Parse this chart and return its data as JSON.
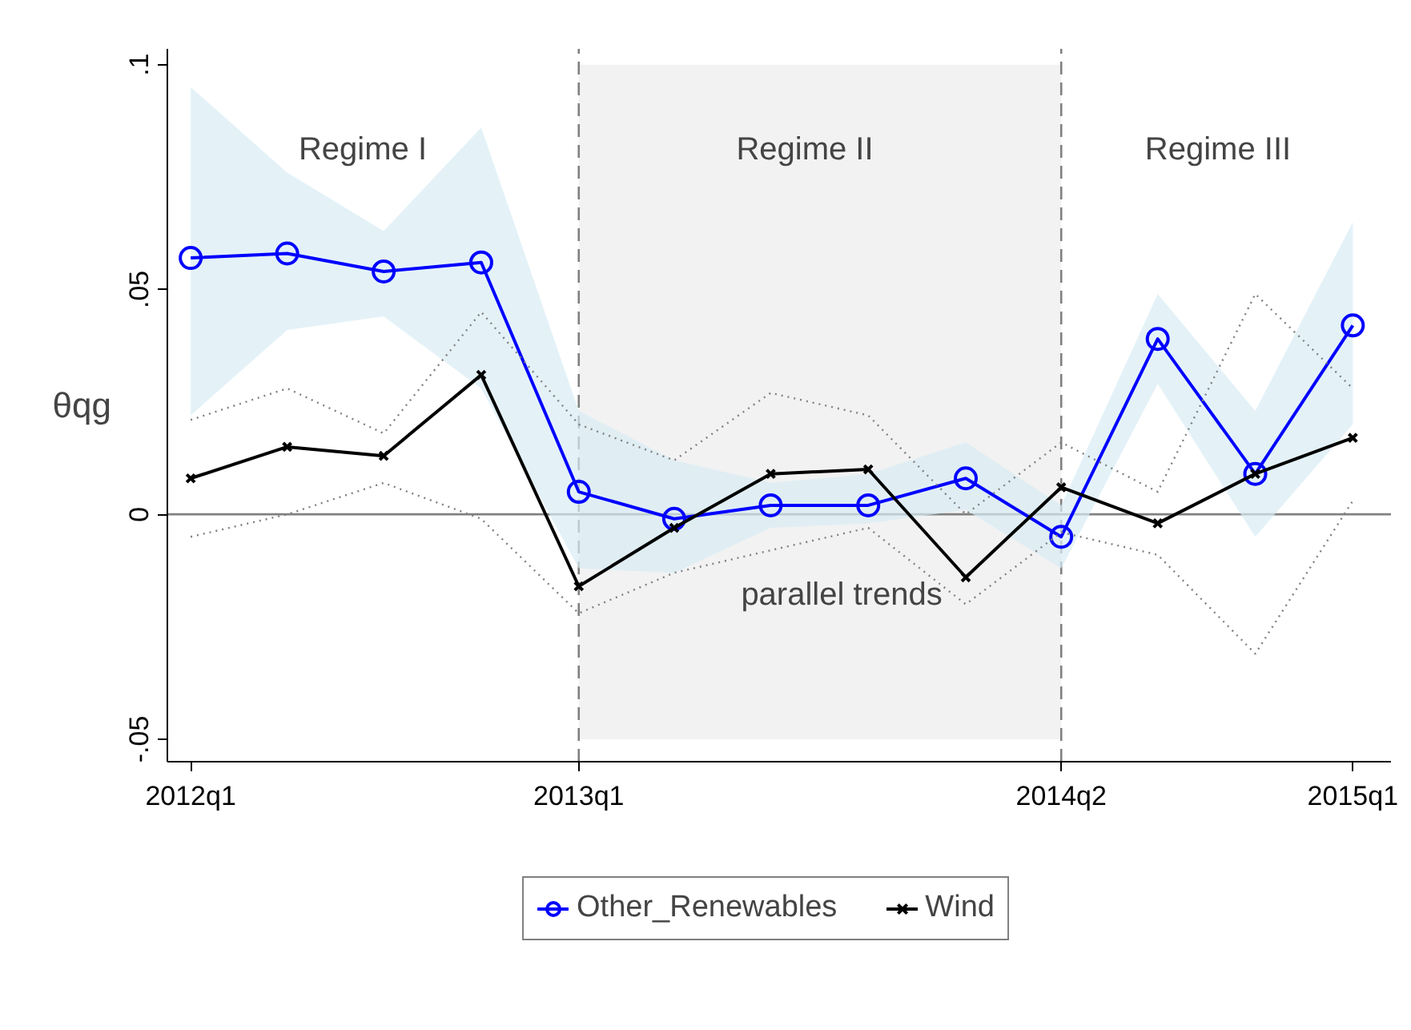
{
  "chart_data": {
    "type": "line",
    "ylabel": "θqg",
    "x": [
      "2012-01",
      "2012-04",
      "2012-07",
      "2012-10",
      "2013-01",
      "2013-04",
      "2013-07",
      "2013-10",
      "2014-01",
      "2014-04",
      "2014-07",
      "2014-10",
      "2015-01"
    ],
    "xlim": [
      "2011-12-10",
      "2015-02-06"
    ],
    "ylim": [
      -0.055,
      0.1035
    ],
    "xticks": [
      {
        "value": "2012-01",
        "label": "2012q1"
      },
      {
        "value": "2013-01",
        "label": "2013q1"
      },
      {
        "value": "2014-04",
        "label": "2014q2"
      },
      {
        "value": "2015-01",
        "label": "2015q1"
      }
    ],
    "yticks": [
      {
        "value": -0.05,
        "label": "-.05"
      },
      0,
      {
        "value": 0.05,
        "label": ".05"
      },
      {
        "value": 0.1,
        "label": ".1"
      }
    ],
    "series": [
      {
        "name": "Other_Renewables",
        "color": "#0000ff",
        "marker": "circle",
        "line_style": "solid",
        "values": [
          0.057,
          0.058,
          0.054,
          0.056,
          0.005,
          -0.001,
          0.002,
          0.002,
          0.008,
          -0.005,
          0.039,
          0.009,
          0.042
        ],
        "lower": [
          0.022,
          0.041,
          0.044,
          0.028,
          -0.012,
          -0.013,
          -0.003,
          -0.002,
          0.001,
          -0.012,
          0.029,
          -0.005,
          0.02
        ],
        "upper": [
          0.095,
          0.076,
          0.063,
          0.086,
          0.023,
          0.012,
          0.007,
          0.009,
          0.016,
          0.002,
          0.049,
          0.023,
          0.065
        ]
      },
      {
        "name": "Wind",
        "color": "#000000",
        "marker": "cross",
        "line_style": "solid",
        "values": [
          0.008,
          0.015,
          0.013,
          0.031,
          -0.016,
          -0.003,
          0.009,
          0.01,
          -0.014,
          0.006,
          -0.002,
          0.009,
          0.017
        ]
      },
      {
        "color": "#808080",
        "marker": "none",
        "line_style": "dotted",
        "values": [
          0.021,
          0.028,
          0.018,
          0.045,
          0.02,
          0.012,
          0.027,
          0.022,
          0.0,
          0.016,
          0.005,
          0.049,
          0.028
        ]
      },
      {
        "color": "#808080",
        "marker": "none",
        "line_style": "dotted",
        "values": [
          -0.005,
          0.0,
          0.007,
          -0.001,
          -0.022,
          -0.013,
          -0.008,
          -0.003,
          -0.02,
          -0.004,
          -0.009,
          -0.031,
          0.003
        ]
      }
    ],
    "bands": [
      {
        "axis": "x",
        "from": "2013-01",
        "to": "2014-04",
        "color": "#f2f2f2"
      }
    ],
    "ref_lines": [
      {
        "axis": "y",
        "value": 0,
        "color": "#808080",
        "line_style": "solid"
      },
      {
        "axis": "x",
        "value": "2013-01",
        "color": "#808080",
        "line_style": "dashed"
      },
      {
        "axis": "x",
        "value": "2014-04",
        "color": "#808080",
        "line_style": "dashed"
      }
    ],
    "annotations": [
      "Regime I",
      "Regime II",
      "Regime III",
      "parallel trends"
    ],
    "legend": "bottom",
    "grid": false
  }
}
